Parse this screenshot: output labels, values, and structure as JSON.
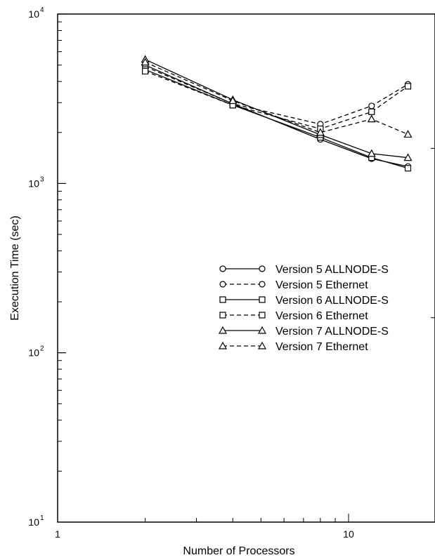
{
  "chart_data": {
    "type": "line",
    "xlabel": "Number of Processors",
    "ylabel": "Execution Time (sec)",
    "xscale": "log",
    "yscale": "log",
    "xlim": [
      1,
      20
    ],
    "ylim": [
      10,
      10000
    ],
    "x_ticks": [
      {
        "value": 1,
        "base": "1",
        "exp": ""
      },
      {
        "value": 10,
        "base": "10",
        "exp": ""
      }
    ],
    "y_ticks": [
      {
        "value": 10,
        "base": "10",
        "exp": "1"
      },
      {
        "value": 100,
        "base": "10",
        "exp": "2"
      },
      {
        "value": 1000,
        "base": "10",
        "exp": "3"
      },
      {
        "value": 10000,
        "base": "10",
        "exp": "4"
      }
    ],
    "legend_position": "center-right",
    "series": [
      {
        "name": "Version 5 ALLNODE-S",
        "marker": "circle",
        "dash": "solid",
        "x": [
          2,
          4,
          8,
          12,
          16
        ],
        "y": [
          5000,
          2950,
          1820,
          1400,
          1260
        ]
      },
      {
        "name": "Version 5 Ethernet",
        "marker": "circle",
        "dash": "dashed",
        "x": [
          2,
          4,
          8,
          12,
          16
        ],
        "y": [
          4900,
          2950,
          2240,
          2870,
          3850
        ]
      },
      {
        "name": "Version 6 ALLNODE-S",
        "marker": "square",
        "dash": "solid",
        "x": [
          2,
          4,
          8,
          12,
          16
        ],
        "y": [
          4700,
          2900,
          1870,
          1420,
          1230
        ]
      },
      {
        "name": "Version 6 Ethernet",
        "marker": "square",
        "dash": "dashed",
        "x": [
          2,
          4,
          8,
          12,
          16
        ],
        "y": [
          4600,
          2900,
          2100,
          2650,
          3750
        ]
      },
      {
        "name": "Version 7 ALLNODE-S",
        "marker": "triangle",
        "dash": "solid",
        "x": [
          2,
          4,
          8,
          12,
          16
        ],
        "y": [
          5400,
          3120,
          1940,
          1500,
          1420
        ]
      },
      {
        "name": "Version 7 Ethernet",
        "marker": "triangle",
        "dash": "dashed",
        "x": [
          2,
          4,
          8,
          12,
          16
        ],
        "y": [
          5200,
          3080,
          2000,
          2400,
          1950
        ]
      }
    ]
  }
}
